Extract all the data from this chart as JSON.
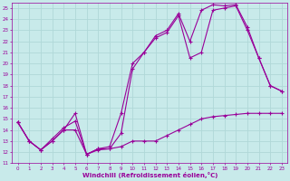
{
  "xlabel": "Windchill (Refroidissement éolien,°C)",
  "xlim": [
    -0.5,
    23.5
  ],
  "ylim": [
    11,
    25.5
  ],
  "xticks": [
    0,
    1,
    2,
    3,
    4,
    5,
    6,
    7,
    8,
    9,
    10,
    11,
    12,
    13,
    14,
    15,
    16,
    17,
    18,
    19,
    20,
    21,
    22,
    23
  ],
  "yticks": [
    11,
    12,
    13,
    14,
    15,
    16,
    17,
    18,
    19,
    20,
    21,
    22,
    23,
    24,
    25
  ],
  "bg_color": "#c8eaea",
  "line_color": "#990099",
  "grid_color": "#b0d8d8",
  "lines": [
    {
      "x": [
        0,
        1,
        2,
        3,
        4,
        5,
        6,
        7,
        8,
        9,
        10,
        11,
        12,
        13,
        14,
        15,
        16,
        17,
        18,
        19,
        20,
        21,
        22,
        23
      ],
      "y": [
        14.7,
        13.0,
        12.2,
        13.0,
        14.0,
        15.5,
        11.8,
        12.3,
        12.3,
        12.5,
        13.0,
        13.0,
        13.0,
        13.5,
        14.0,
        14.5,
        15.0,
        15.2,
        15.3,
        15.4,
        15.5,
        15.5,
        15.5,
        15.5
      ]
    },
    {
      "x": [
        0,
        1,
        2,
        3,
        4,
        5,
        6,
        7,
        8,
        9,
        10,
        11,
        12,
        13,
        14,
        15,
        16,
        17,
        18,
        19,
        20,
        21,
        22,
        23
      ],
      "y": [
        14.7,
        13.0,
        12.2,
        13.2,
        14.2,
        14.8,
        11.8,
        12.3,
        12.5,
        15.5,
        20.0,
        21.0,
        22.5,
        23.0,
        24.5,
        22.0,
        24.8,
        25.3,
        25.2,
        25.3,
        23.3,
        20.5,
        18.0,
        17.5
      ]
    },
    {
      "x": [
        0,
        1,
        2,
        3,
        4,
        5,
        6,
        7,
        8,
        9,
        10,
        11,
        12,
        13,
        14,
        15,
        16,
        17,
        18,
        19,
        20,
        21,
        22,
        23
      ],
      "y": [
        14.7,
        13.0,
        12.2,
        13.0,
        14.0,
        14.0,
        11.8,
        12.2,
        12.3,
        13.7,
        19.5,
        21.0,
        22.3,
        22.8,
        24.3,
        20.5,
        21.0,
        24.8,
        25.0,
        25.2,
        23.0,
        20.5,
        18.0,
        17.5
      ]
    }
  ]
}
